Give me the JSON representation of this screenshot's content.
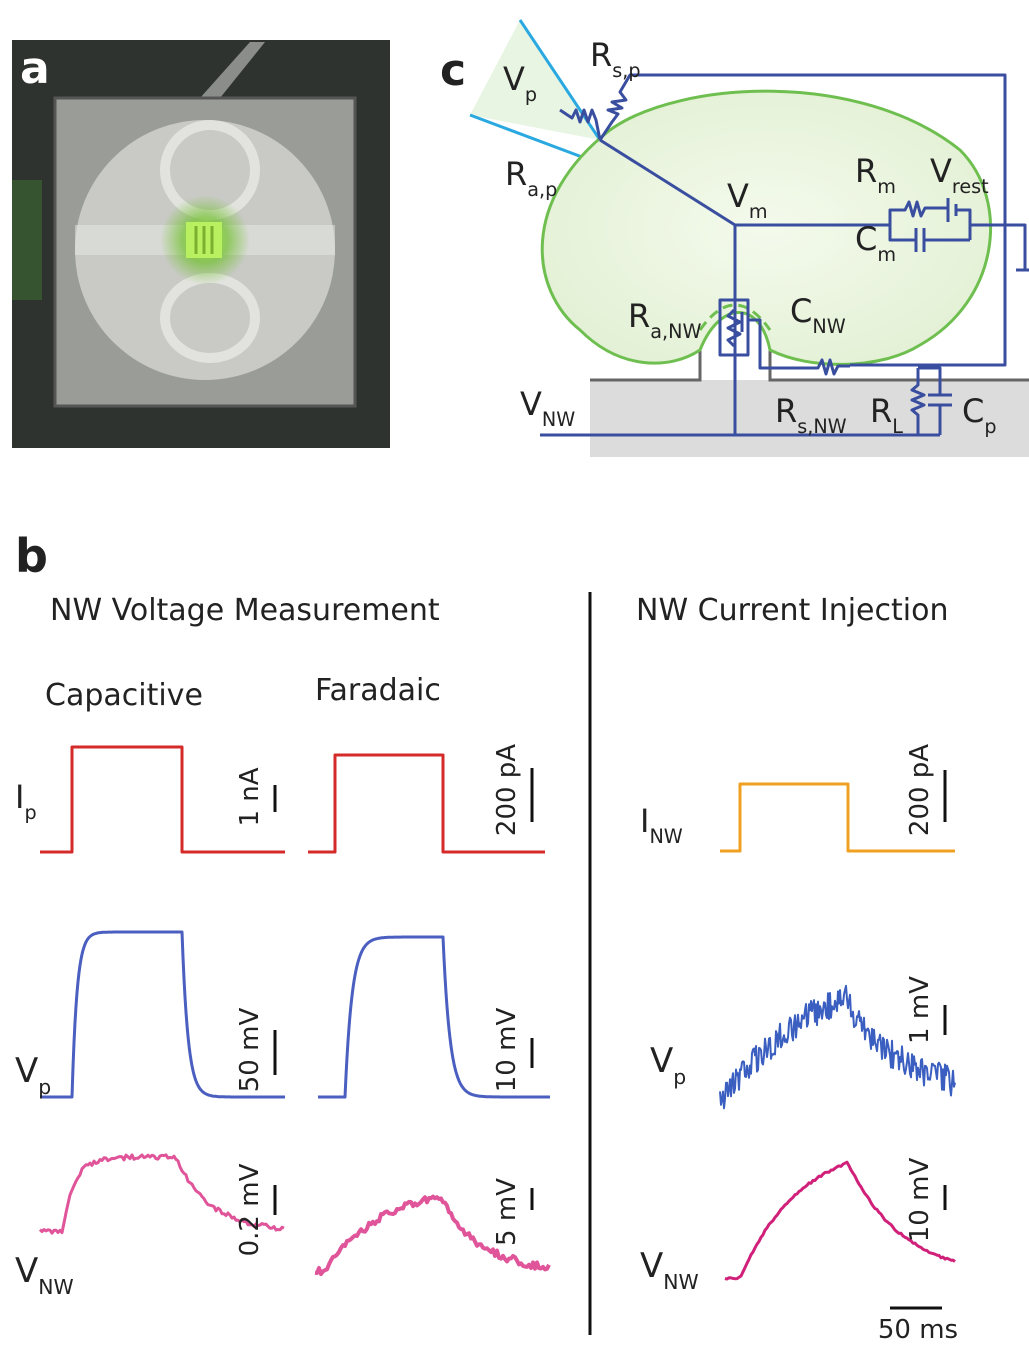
{
  "panels": {
    "a": "a",
    "b": "b",
    "c": "c"
  },
  "circuit": {
    "labels": [
      {
        "main": "V",
        "sub": "p"
      },
      {
        "main": "R",
        "sub": "s,p"
      },
      {
        "main": "R",
        "sub": "a,p"
      },
      {
        "main": "V",
        "sub": "m"
      },
      {
        "main": "R",
        "sub": "m"
      },
      {
        "main": "V",
        "sub": "rest"
      },
      {
        "main": "C",
        "sub": "m"
      },
      {
        "main": "R",
        "sub": "a,NW"
      },
      {
        "main": "C",
        "sub": "NW"
      },
      {
        "main": "V",
        "sub": "NW"
      },
      {
        "main": "R",
        "sub": "s,NW"
      },
      {
        "main": "R",
        "sub": "L"
      },
      {
        "main": "C",
        "sub": "p"
      }
    ]
  },
  "traces": {
    "voltage_title": "NW Voltage Measurement",
    "current_title": "NW Current Injection",
    "columns": [
      "Capacitive",
      "Faradaic"
    ],
    "row_labels": [
      {
        "main": "I",
        "sub": "p"
      },
      {
        "main": "V",
        "sub": "p"
      },
      {
        "main": "V",
        "sub": "NW"
      },
      {
        "main": "I",
        "sub": "NW"
      },
      {
        "main": "V",
        "sub": "p"
      },
      {
        "main": "V",
        "sub": "NW"
      }
    ],
    "scale_bars": [
      "1 nA",
      "200 pA",
      "50 mV",
      "10 mV",
      "0.2 mV",
      "5 mV",
      "200 pA",
      "1 mV",
      "10 mV",
      "50 ms"
    ]
  }
}
